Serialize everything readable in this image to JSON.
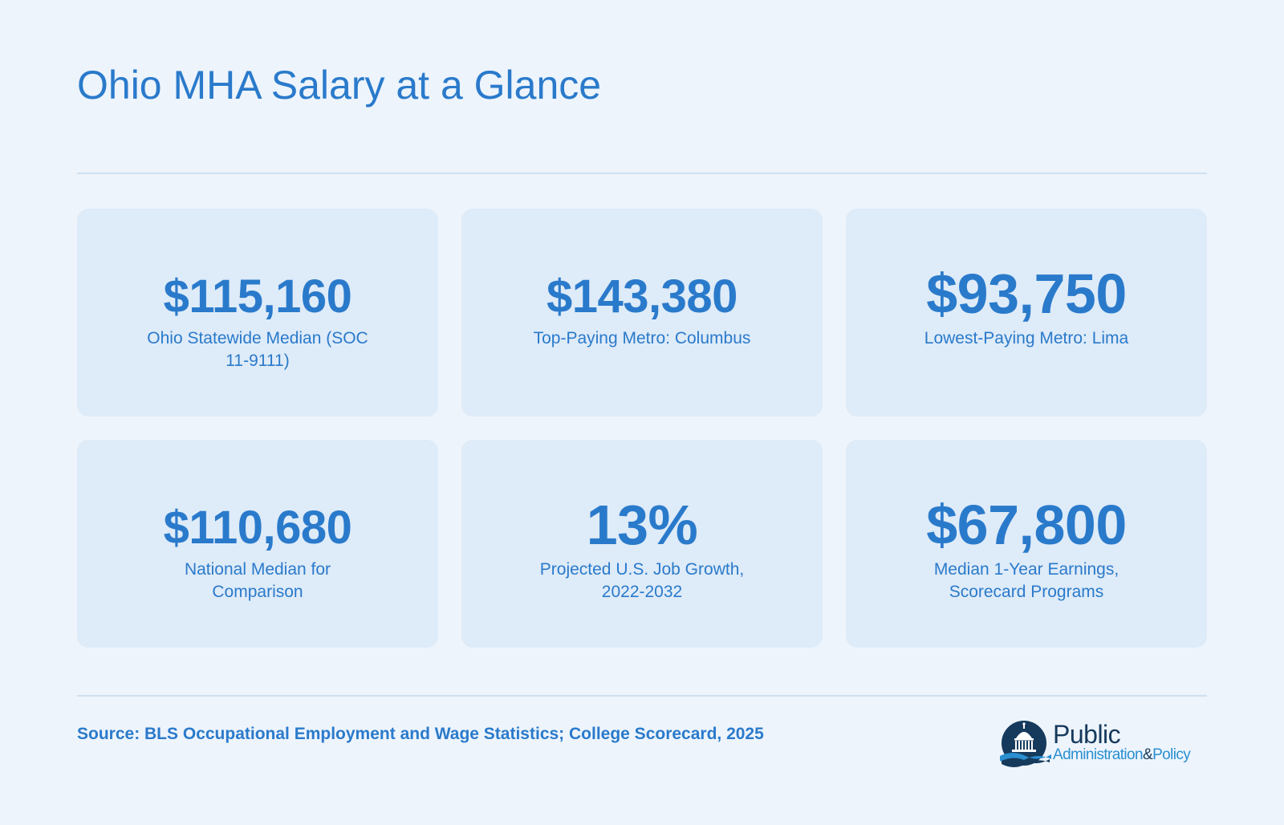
{
  "page": {
    "title": "Ohio MHA Salary at a Glance"
  },
  "cards": [
    {
      "value": "$115,160",
      "label": "Ohio Statewide Median (SOC 11-9111)"
    },
    {
      "value": "$143,380",
      "label": "Top-Paying Metro: Columbus"
    },
    {
      "value": "$93,750",
      "label": "Lowest-Paying Metro: Lima"
    },
    {
      "value": "$110,680",
      "label": "National Median for Comparison"
    },
    {
      "value": "13%",
      "label": "Projected U.S. Job Growth, 2022-2032"
    },
    {
      "value": "$67,800",
      "label": "Median 1-Year Earnings, Scorecard Programs"
    }
  ],
  "footer": {
    "source": "Source: BLS Occupational Employment and Wage Statistics; College Scorecard, 2025"
  },
  "logo": {
    "line1": "Public",
    "line2a": "Administration",
    "amp": "&",
    "line2b": "Policy",
    "icon": "capitol-dome-icon"
  },
  "colors": {
    "background": "#edf4fc",
    "card": "#deebf8",
    "accent": "#2a7acb",
    "logo_dark": "#163a5c"
  }
}
